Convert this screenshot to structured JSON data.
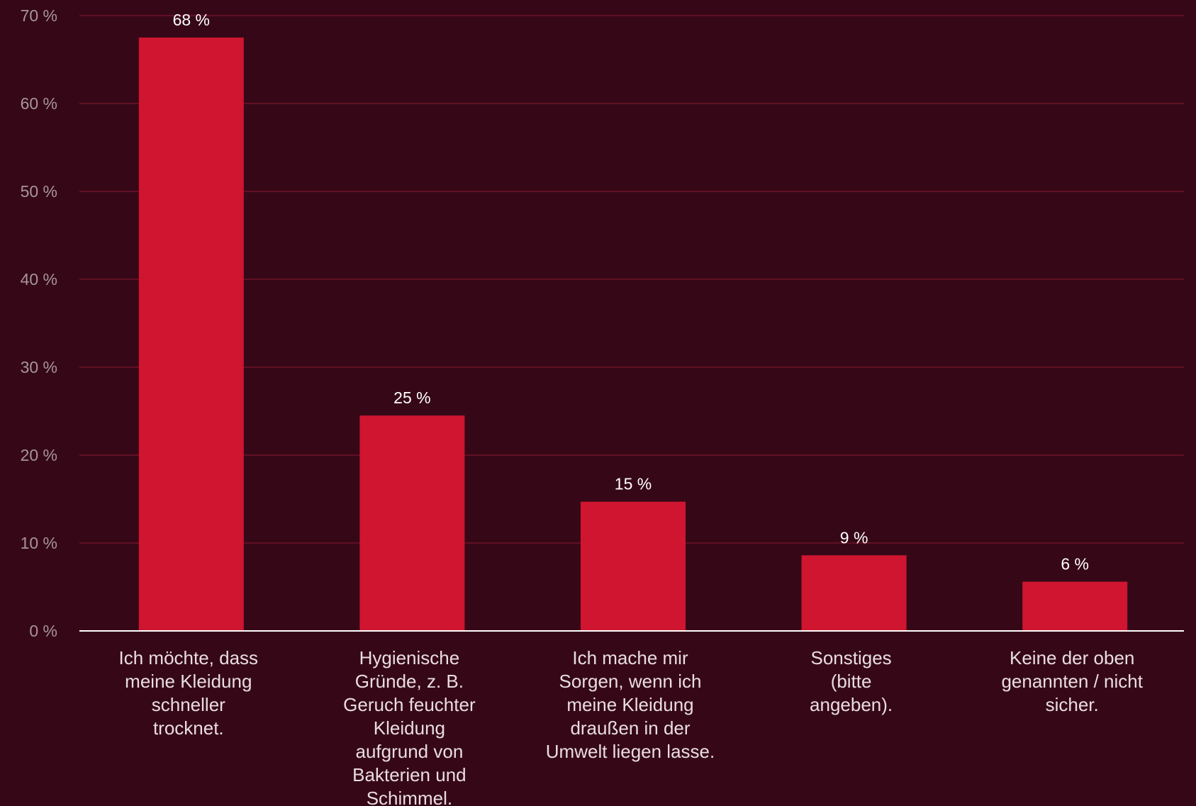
{
  "chart_data": {
    "type": "bar",
    "categories": [
      "Ich möchte, dass meine Kleidung schneller trocknet.",
      "Hygienische Gründe, z. B. Geruch feuchter Kleidung aufgrund von Bakterien und Schimmel.",
      "Ich mache mir Sorgen, wenn ich meine Kleidung draußen in der Umwelt liegen lasse.",
      "Sonstiges (bitte angeben).",
      "Keine der oben genannten / nicht sicher."
    ],
    "category_lines": [
      [
        "Ich möchte, dass",
        "meine Kleidung",
        "schneller",
        "trocknet."
      ],
      [
        "Hygienische",
        "Gründe, z. B.",
        "Geruch feuchter",
        "Kleidung",
        "aufgrund von",
        "Bakterien und",
        "Schimmel."
      ],
      [
        "Ich mache mir",
        "Sorgen, wenn ich",
        "meine Kleidung",
        "draußen in der",
        "Umwelt liegen lasse."
      ],
      [
        "Sonstiges",
        "(bitte",
        "angeben)."
      ],
      [
        "Keine der oben",
        "genannten / nicht",
        "sicher."
      ]
    ],
    "values": [
      67.5,
      24.5,
      14.7,
      8.6,
      5.6
    ],
    "data_labels": [
      "68 %",
      "25 %",
      "15 %",
      "9 %",
      "6 %"
    ],
    "ylim": [
      0,
      70
    ],
    "yticks": [
      0,
      10,
      20,
      30,
      40,
      50,
      60,
      70
    ],
    "ytick_labels": [
      "0 %",
      "10 %",
      "20 %",
      "30 %",
      "40 %",
      "50 %",
      "60 %",
      "70 %"
    ],
    "grid": true,
    "title": "",
    "xlabel": "",
    "ylabel": "",
    "colors": {
      "background": "#360817",
      "bar": "#cf1530",
      "grid": "#6e1228",
      "baseline": "#ffffff",
      "tick_text": "#a8949b",
      "value_text": "#ffffff",
      "category_text": "#e9dde1"
    }
  }
}
